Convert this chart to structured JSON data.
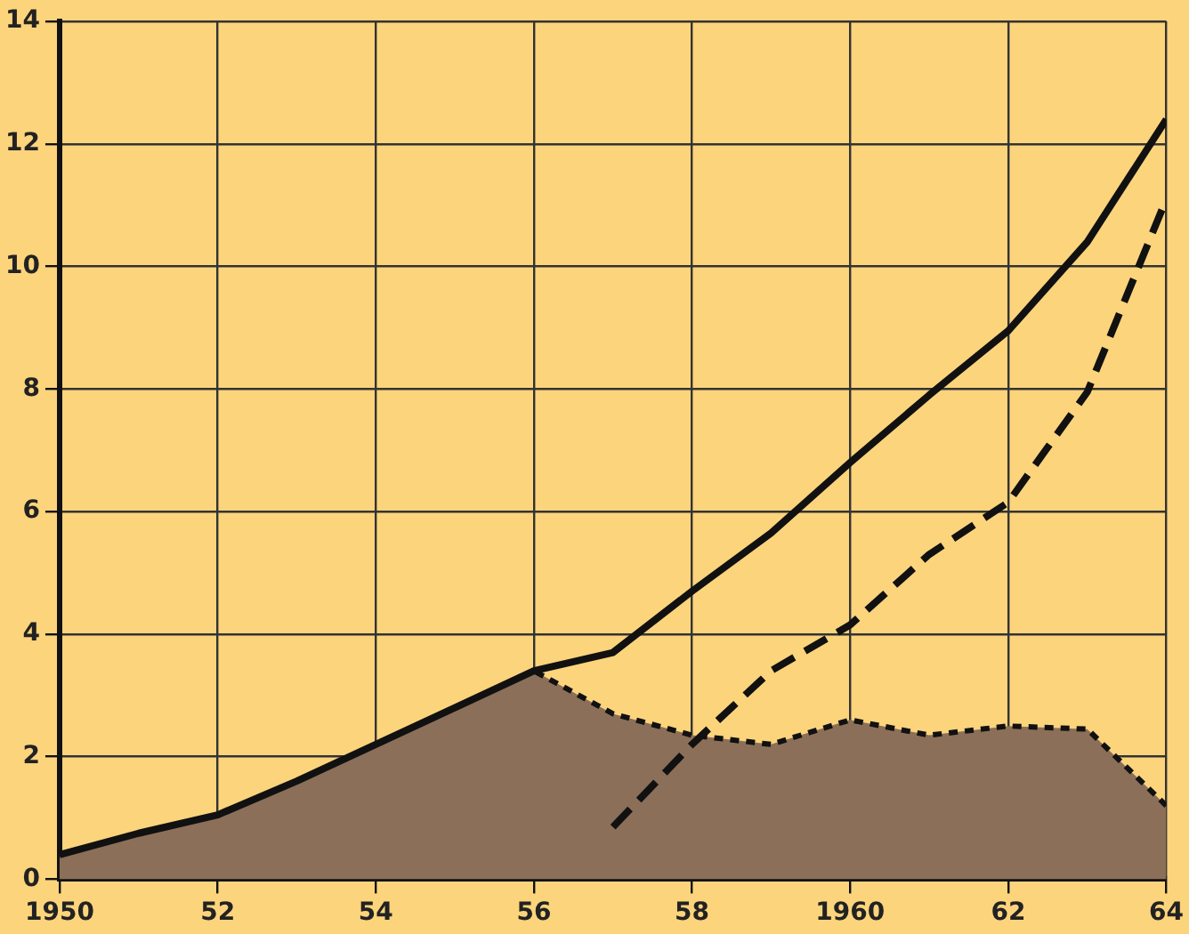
{
  "chart_data": {
    "type": "line",
    "xlim": [
      1950,
      1964
    ],
    "xticks": [
      1950,
      {
        "value": 1952,
        "label": "52"
      },
      {
        "value": 1954,
        "label": "54"
      },
      {
        "value": 1956,
        "label": "56"
      },
      {
        "value": 1958,
        "label": "58"
      },
      1960,
      {
        "value": 1962,
        "label": "62"
      },
      {
        "value": 1964,
        "label": "64"
      }
    ],
    "ylim": [
      0,
      14
    ],
    "yticks": [
      0,
      2,
      4,
      6,
      8,
      10,
      12,
      14
    ],
    "grid": true,
    "marker": "none",
    "series": [
      {
        "type": "area",
        "color": "#8c6f58",
        "line_style": "dotted",
        "x": [
          1950,
          1951,
          1952,
          1953,
          1954,
          1955,
          1956,
          1957,
          1958,
          1959,
          1960,
          1961,
          1962,
          1963,
          1964
        ],
        "values": [
          0.4,
          0.75,
          1.05,
          1.6,
          2.2,
          2.8,
          3.4,
          2.7,
          2.35,
          2.2,
          2.6,
          2.35,
          2.5,
          2.45,
          1.2
        ]
      },
      {
        "color": "#111111",
        "line_style": "solid",
        "x": [
          1950,
          1951,
          1952,
          1953,
          1954,
          1955,
          1956,
          1957,
          1958,
          1959,
          1960,
          1961,
          1962,
          1963,
          1964
        ],
        "values": [
          0.4,
          0.75,
          1.05,
          1.6,
          2.2,
          2.8,
          3.4,
          3.7,
          4.7,
          5.65,
          6.8,
          7.9,
          8.95,
          10.4,
          12.4
        ]
      },
      {
        "color": "#111111",
        "line_style": "dashed",
        "x": [
          1957,
          1958,
          1959,
          1960,
          1961,
          1962,
          1963,
          1964
        ],
        "values": [
          0.85,
          2.2,
          3.4,
          4.15,
          5.3,
          6.15,
          7.95,
          11.1
        ]
      }
    ]
  }
}
